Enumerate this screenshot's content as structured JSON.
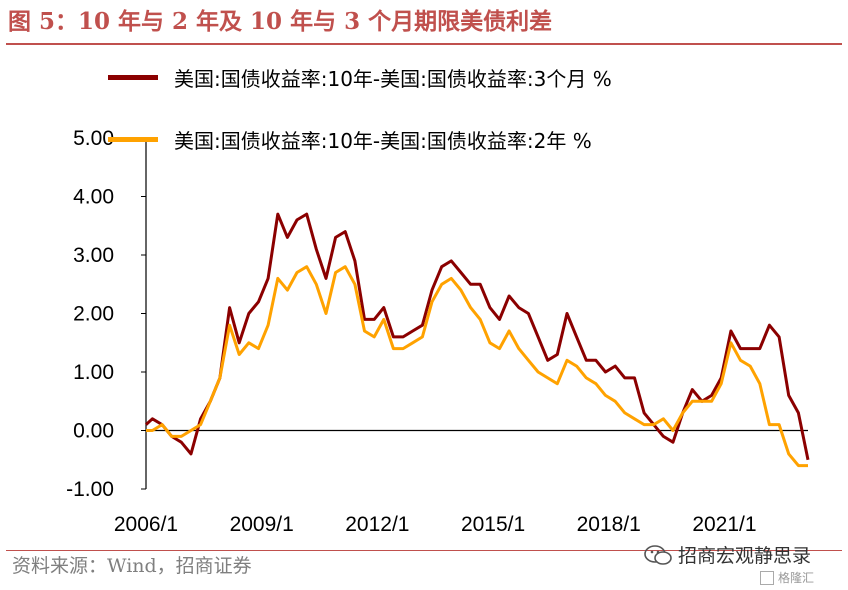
{
  "figure": {
    "title": "图 5：10 年与 2 年及 10 年与 3 个月期限美债利差",
    "source": "资料来源：Wind，招商证券",
    "watermark": "招商宏观静思录",
    "watermark_icon": "wechat-icon",
    "logo_text": "格隆汇",
    "accent_color": "#c0504d"
  },
  "chart_data": {
    "type": "line",
    "title": "",
    "xlabel": "",
    "ylabel": "",
    "ylim": [
      -1.0,
      5.0
    ],
    "xlim": [
      "2006/1",
      "2023/3"
    ],
    "yticks": [
      "5.00",
      "4.00",
      "3.00",
      "2.00",
      "1.00",
      "0.00",
      "-1.00"
    ],
    "xticks": [
      "2006/1",
      "2009/1",
      "2012/1",
      "2015/1",
      "2018/1",
      "2021/1"
    ],
    "grid": false,
    "legend_position": "top-left",
    "series": [
      {
        "name": "美国:国债收益率:10年-美国:国债收益率:3个月 %",
        "color": "#8b0000",
        "points": [
          [
            "2006/01",
            0.1
          ],
          [
            "2006/03",
            0.2
          ],
          [
            "2006/06",
            0.1
          ],
          [
            "2006/09",
            -0.1
          ],
          [
            "2006/12",
            -0.2
          ],
          [
            "2007/03",
            -0.4
          ],
          [
            "2007/06",
            0.2
          ],
          [
            "2007/09",
            0.5
          ],
          [
            "2007/12",
            0.9
          ],
          [
            "2008/03",
            2.1
          ],
          [
            "2008/06",
            1.5
          ],
          [
            "2008/09",
            2.0
          ],
          [
            "2008/12",
            2.2
          ],
          [
            "2009/03",
            2.6
          ],
          [
            "2009/06",
            3.7
          ],
          [
            "2009/09",
            3.3
          ],
          [
            "2009/12",
            3.6
          ],
          [
            "2010/03",
            3.7
          ],
          [
            "2010/06",
            3.1
          ],
          [
            "2010/09",
            2.6
          ],
          [
            "2010/12",
            3.3
          ],
          [
            "2011/03",
            3.4
          ],
          [
            "2011/06",
            2.9
          ],
          [
            "2011/09",
            1.9
          ],
          [
            "2011/12",
            1.9
          ],
          [
            "2012/03",
            2.1
          ],
          [
            "2012/06",
            1.6
          ],
          [
            "2012/09",
            1.6
          ],
          [
            "2012/12",
            1.7
          ],
          [
            "2013/03",
            1.8
          ],
          [
            "2013/06",
            2.4
          ],
          [
            "2013/09",
            2.8
          ],
          [
            "2013/12",
            2.9
          ],
          [
            "2014/03",
            2.7
          ],
          [
            "2014/06",
            2.5
          ],
          [
            "2014/09",
            2.5
          ],
          [
            "2014/12",
            2.1
          ],
          [
            "2015/03",
            1.9
          ],
          [
            "2015/06",
            2.3
          ],
          [
            "2015/09",
            2.1
          ],
          [
            "2015/12",
            2.0
          ],
          [
            "2016/03",
            1.6
          ],
          [
            "2016/06",
            1.2
          ],
          [
            "2016/09",
            1.3
          ],
          [
            "2016/12",
            2.0
          ],
          [
            "2017/03",
            1.6
          ],
          [
            "2017/06",
            1.2
          ],
          [
            "2017/09",
            1.2
          ],
          [
            "2017/12",
            1.0
          ],
          [
            "2018/03",
            1.1
          ],
          [
            "2018/06",
            0.9
          ],
          [
            "2018/09",
            0.9
          ],
          [
            "2018/12",
            0.3
          ],
          [
            "2019/03",
            0.1
          ],
          [
            "2019/06",
            -0.1
          ],
          [
            "2019/09",
            -0.2
          ],
          [
            "2019/12",
            0.3
          ],
          [
            "2020/03",
            0.7
          ],
          [
            "2020/06",
            0.5
          ],
          [
            "2020/09",
            0.6
          ],
          [
            "2020/12",
            0.9
          ],
          [
            "2021/03",
            1.7
          ],
          [
            "2021/06",
            1.4
          ],
          [
            "2021/09",
            1.4
          ],
          [
            "2021/12",
            1.4
          ],
          [
            "2022/03",
            1.8
          ],
          [
            "2022/06",
            1.6
          ],
          [
            "2022/09",
            0.6
          ],
          [
            "2022/12",
            0.3
          ],
          [
            "2023/03",
            -0.5
          ]
        ]
      },
      {
        "name": "美国:国债收益率:10年-美国:国债收益率:2年 %",
        "color": "#ffa200",
        "points": [
          [
            "2006/01",
            0.0
          ],
          [
            "2006/03",
            0.0
          ],
          [
            "2006/06",
            0.1
          ],
          [
            "2006/09",
            -0.1
          ],
          [
            "2006/12",
            -0.1
          ],
          [
            "2007/03",
            0.0
          ],
          [
            "2007/06",
            0.1
          ],
          [
            "2007/09",
            0.5
          ],
          [
            "2007/12",
            0.9
          ],
          [
            "2008/03",
            1.8
          ],
          [
            "2008/06",
            1.3
          ],
          [
            "2008/09",
            1.5
          ],
          [
            "2008/12",
            1.4
          ],
          [
            "2009/03",
            1.8
          ],
          [
            "2009/06",
            2.6
          ],
          [
            "2009/09",
            2.4
          ],
          [
            "2009/12",
            2.7
          ],
          [
            "2010/03",
            2.8
          ],
          [
            "2010/06",
            2.5
          ],
          [
            "2010/09",
            2.0
          ],
          [
            "2010/12",
            2.7
          ],
          [
            "2011/03",
            2.8
          ],
          [
            "2011/06",
            2.5
          ],
          [
            "2011/09",
            1.7
          ],
          [
            "2011/12",
            1.6
          ],
          [
            "2012/03",
            1.9
          ],
          [
            "2012/06",
            1.4
          ],
          [
            "2012/09",
            1.4
          ],
          [
            "2012/12",
            1.5
          ],
          [
            "2013/03",
            1.6
          ],
          [
            "2013/06",
            2.2
          ],
          [
            "2013/09",
            2.5
          ],
          [
            "2013/12",
            2.6
          ],
          [
            "2014/03",
            2.4
          ],
          [
            "2014/06",
            2.1
          ],
          [
            "2014/09",
            1.9
          ],
          [
            "2014/12",
            1.5
          ],
          [
            "2015/03",
            1.4
          ],
          [
            "2015/06",
            1.7
          ],
          [
            "2015/09",
            1.4
          ],
          [
            "2015/12",
            1.2
          ],
          [
            "2016/03",
            1.0
          ],
          [
            "2016/06",
            0.9
          ],
          [
            "2016/09",
            0.8
          ],
          [
            "2016/12",
            1.2
          ],
          [
            "2017/03",
            1.1
          ],
          [
            "2017/06",
            0.9
          ],
          [
            "2017/09",
            0.8
          ],
          [
            "2017/12",
            0.6
          ],
          [
            "2018/03",
            0.5
          ],
          [
            "2018/06",
            0.3
          ],
          [
            "2018/09",
            0.2
          ],
          [
            "2018/12",
            0.1
          ],
          [
            "2019/03",
            0.1
          ],
          [
            "2019/06",
            0.2
          ],
          [
            "2019/09",
            0.0
          ],
          [
            "2019/12",
            0.3
          ],
          [
            "2020/03",
            0.5
          ],
          [
            "2020/06",
            0.5
          ],
          [
            "2020/09",
            0.5
          ],
          [
            "2020/12",
            0.8
          ],
          [
            "2021/03",
            1.5
          ],
          [
            "2021/06",
            1.2
          ],
          [
            "2021/09",
            1.1
          ],
          [
            "2021/12",
            0.8
          ],
          [
            "2022/03",
            0.1
          ],
          [
            "2022/06",
            0.1
          ],
          [
            "2022/09",
            -0.4
          ],
          [
            "2022/12",
            -0.6
          ],
          [
            "2023/03",
            -0.6
          ]
        ]
      }
    ]
  }
}
